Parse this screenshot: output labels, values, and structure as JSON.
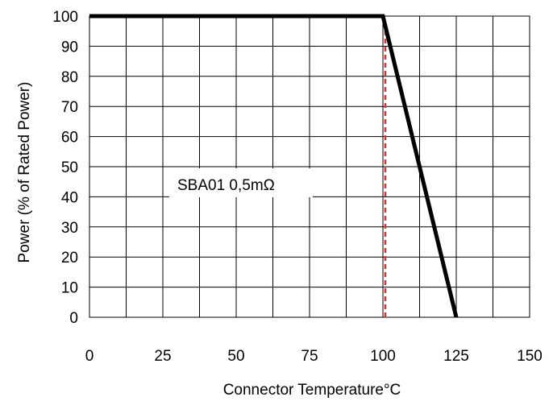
{
  "chart_data": {
    "type": "line",
    "xlabel": "Connector Temperature°C",
    "ylabel": "Power (% of Rated Power)",
    "xlim": [
      0,
      150
    ],
    "ylim": [
      0,
      100
    ],
    "x_ticks": [
      0,
      25,
      50,
      75,
      100,
      125,
      150
    ],
    "y_ticks": [
      0,
      10,
      20,
      30,
      40,
      50,
      60,
      70,
      80,
      90,
      100
    ],
    "grid": true,
    "series": [
      {
        "x": [
          0,
          100,
          125
        ],
        "y": [
          100,
          100,
          0
        ],
        "color": "#000000"
      }
    ],
    "reference_line": {
      "x": 100,
      "color": "#e53030",
      "style": "dashed"
    },
    "annotation": "SBA01 0,5mΩ"
  }
}
